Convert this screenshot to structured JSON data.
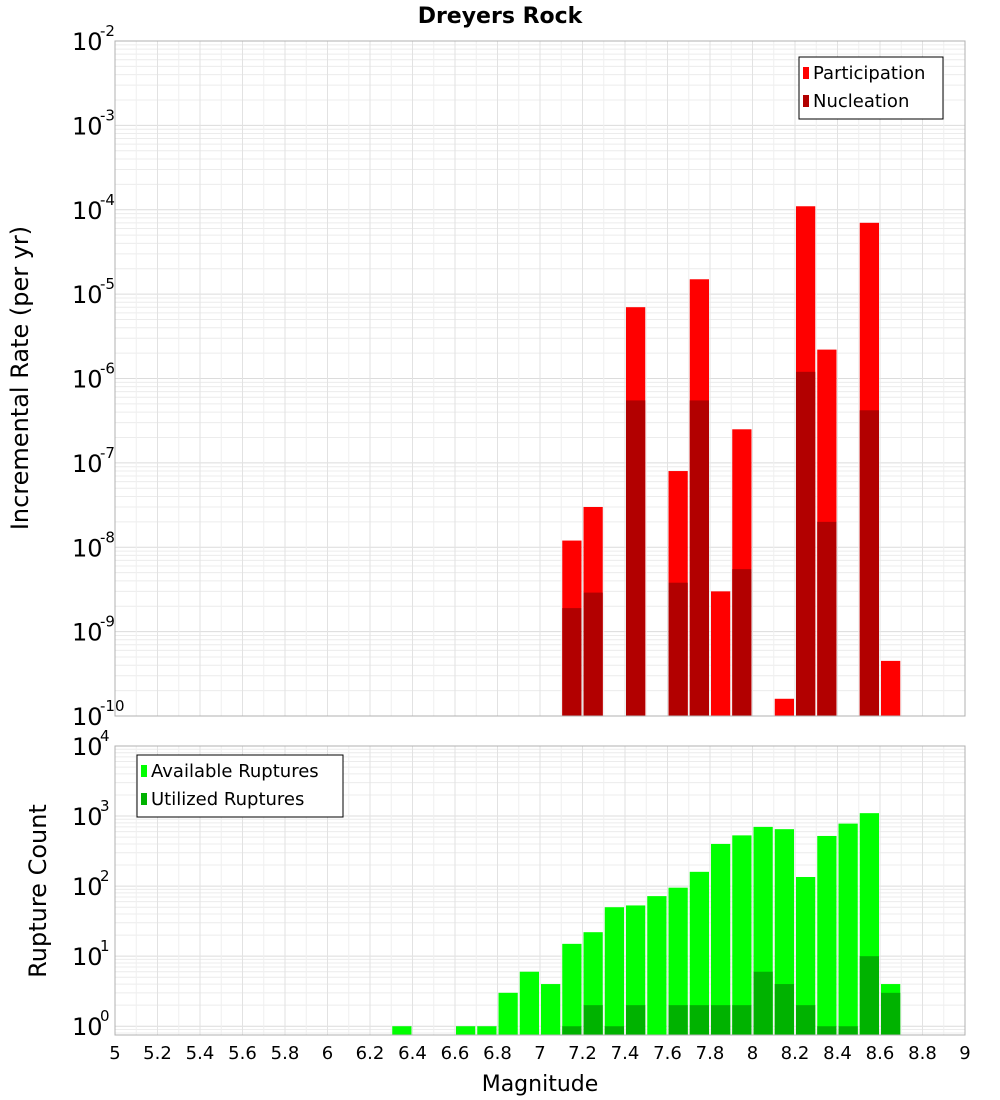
{
  "chart_data": [
    {
      "type": "bar",
      "scale": "log",
      "title": "Dreyers Rock",
      "ylabel": "Incremental Rate (per yr)",
      "xlim": [
        5,
        9
      ],
      "ylim": [
        1e-10,
        0.01
      ],
      "ytick_exponents": [
        "-2",
        "-3",
        "-4",
        "-5",
        "-6",
        "-7",
        "-8",
        "-9",
        "-10"
      ],
      "ytick_base": "10",
      "grid": true,
      "legend_position": "top-right",
      "legend": [
        "Participation",
        "Nucleation"
      ],
      "colors": {
        "Participation": "#ff0000",
        "Nucleation": "#b20000"
      },
      "bin_width": 0.1,
      "series": [
        {
          "name": "Participation",
          "x": [
            7.15,
            7.25,
            7.45,
            7.65,
            7.75,
            7.85,
            7.95,
            8.15,
            8.25,
            8.35,
            8.55,
            8.65
          ],
          "values": [
            1.2e-08,
            3e-08,
            7e-06,
            8e-08,
            1.5e-05,
            3e-09,
            2.5e-07,
            1.6e-10,
            0.00011,
            2.2e-06,
            7e-05,
            4.5e-10
          ]
        },
        {
          "name": "Nucleation",
          "x": [
            7.15,
            7.25,
            7.45,
            7.65,
            7.75,
            7.95,
            8.25,
            8.35,
            8.55
          ],
          "values": [
            1.9e-09,
            2.9e-09,
            5.5e-07,
            3.8e-09,
            5.5e-07,
            5.5e-09,
            1.2e-06,
            2e-08,
            4.2e-07
          ]
        }
      ]
    },
    {
      "type": "bar",
      "scale": "log",
      "xlabel": "Magnitude",
      "ylabel": "Rupture Count",
      "xlim": [
        5,
        9
      ],
      "ylim": [
        0.75,
        10000
      ],
      "xticks": [
        "5",
        "5.2",
        "5.4",
        "5.6",
        "5.8",
        "6",
        "6.2",
        "6.4",
        "6.6",
        "6.8",
        "7",
        "7.2",
        "7.4",
        "7.6",
        "7.8",
        "8",
        "8.2",
        "8.4",
        "8.6",
        "8.8",
        "9"
      ],
      "ytick_exponents": [
        "4",
        "3",
        "2",
        "1",
        "0"
      ],
      "ytick_base": "10",
      "grid": true,
      "legend_position": "top-left",
      "legend": [
        "Available Ruptures",
        "Utilized Ruptures"
      ],
      "colors": {
        "Available Ruptures": "#00ff00",
        "Utilized Ruptures": "#00b200"
      },
      "bin_width": 0.1,
      "series": [
        {
          "name": "Available Ruptures",
          "x": [
            6.35,
            6.65,
            6.75,
            6.85,
            6.95,
            7.05,
            7.15,
            7.25,
            7.35,
            7.45,
            7.55,
            7.65,
            7.75,
            7.85,
            7.95,
            8.05,
            8.15,
            8.25,
            8.35,
            8.45,
            8.55,
            8.65
          ],
          "values": [
            1,
            1,
            1,
            3,
            6,
            4,
            15,
            22,
            50,
            53,
            72,
            95,
            160,
            400,
            530,
            700,
            650,
            135,
            520,
            780,
            1100,
            4
          ]
        },
        {
          "name": "Utilized Ruptures",
          "x": [
            7.15,
            7.25,
            7.35,
            7.45,
            7.65,
            7.75,
            7.85,
            7.95,
            8.05,
            8.15,
            8.25,
            8.35,
            8.45,
            8.55,
            8.65
          ],
          "values": [
            1,
            2,
            1,
            2,
            2,
            2,
            2,
            2,
            6,
            4,
            2,
            1,
            1,
            10,
            3
          ]
        }
      ]
    }
  ]
}
